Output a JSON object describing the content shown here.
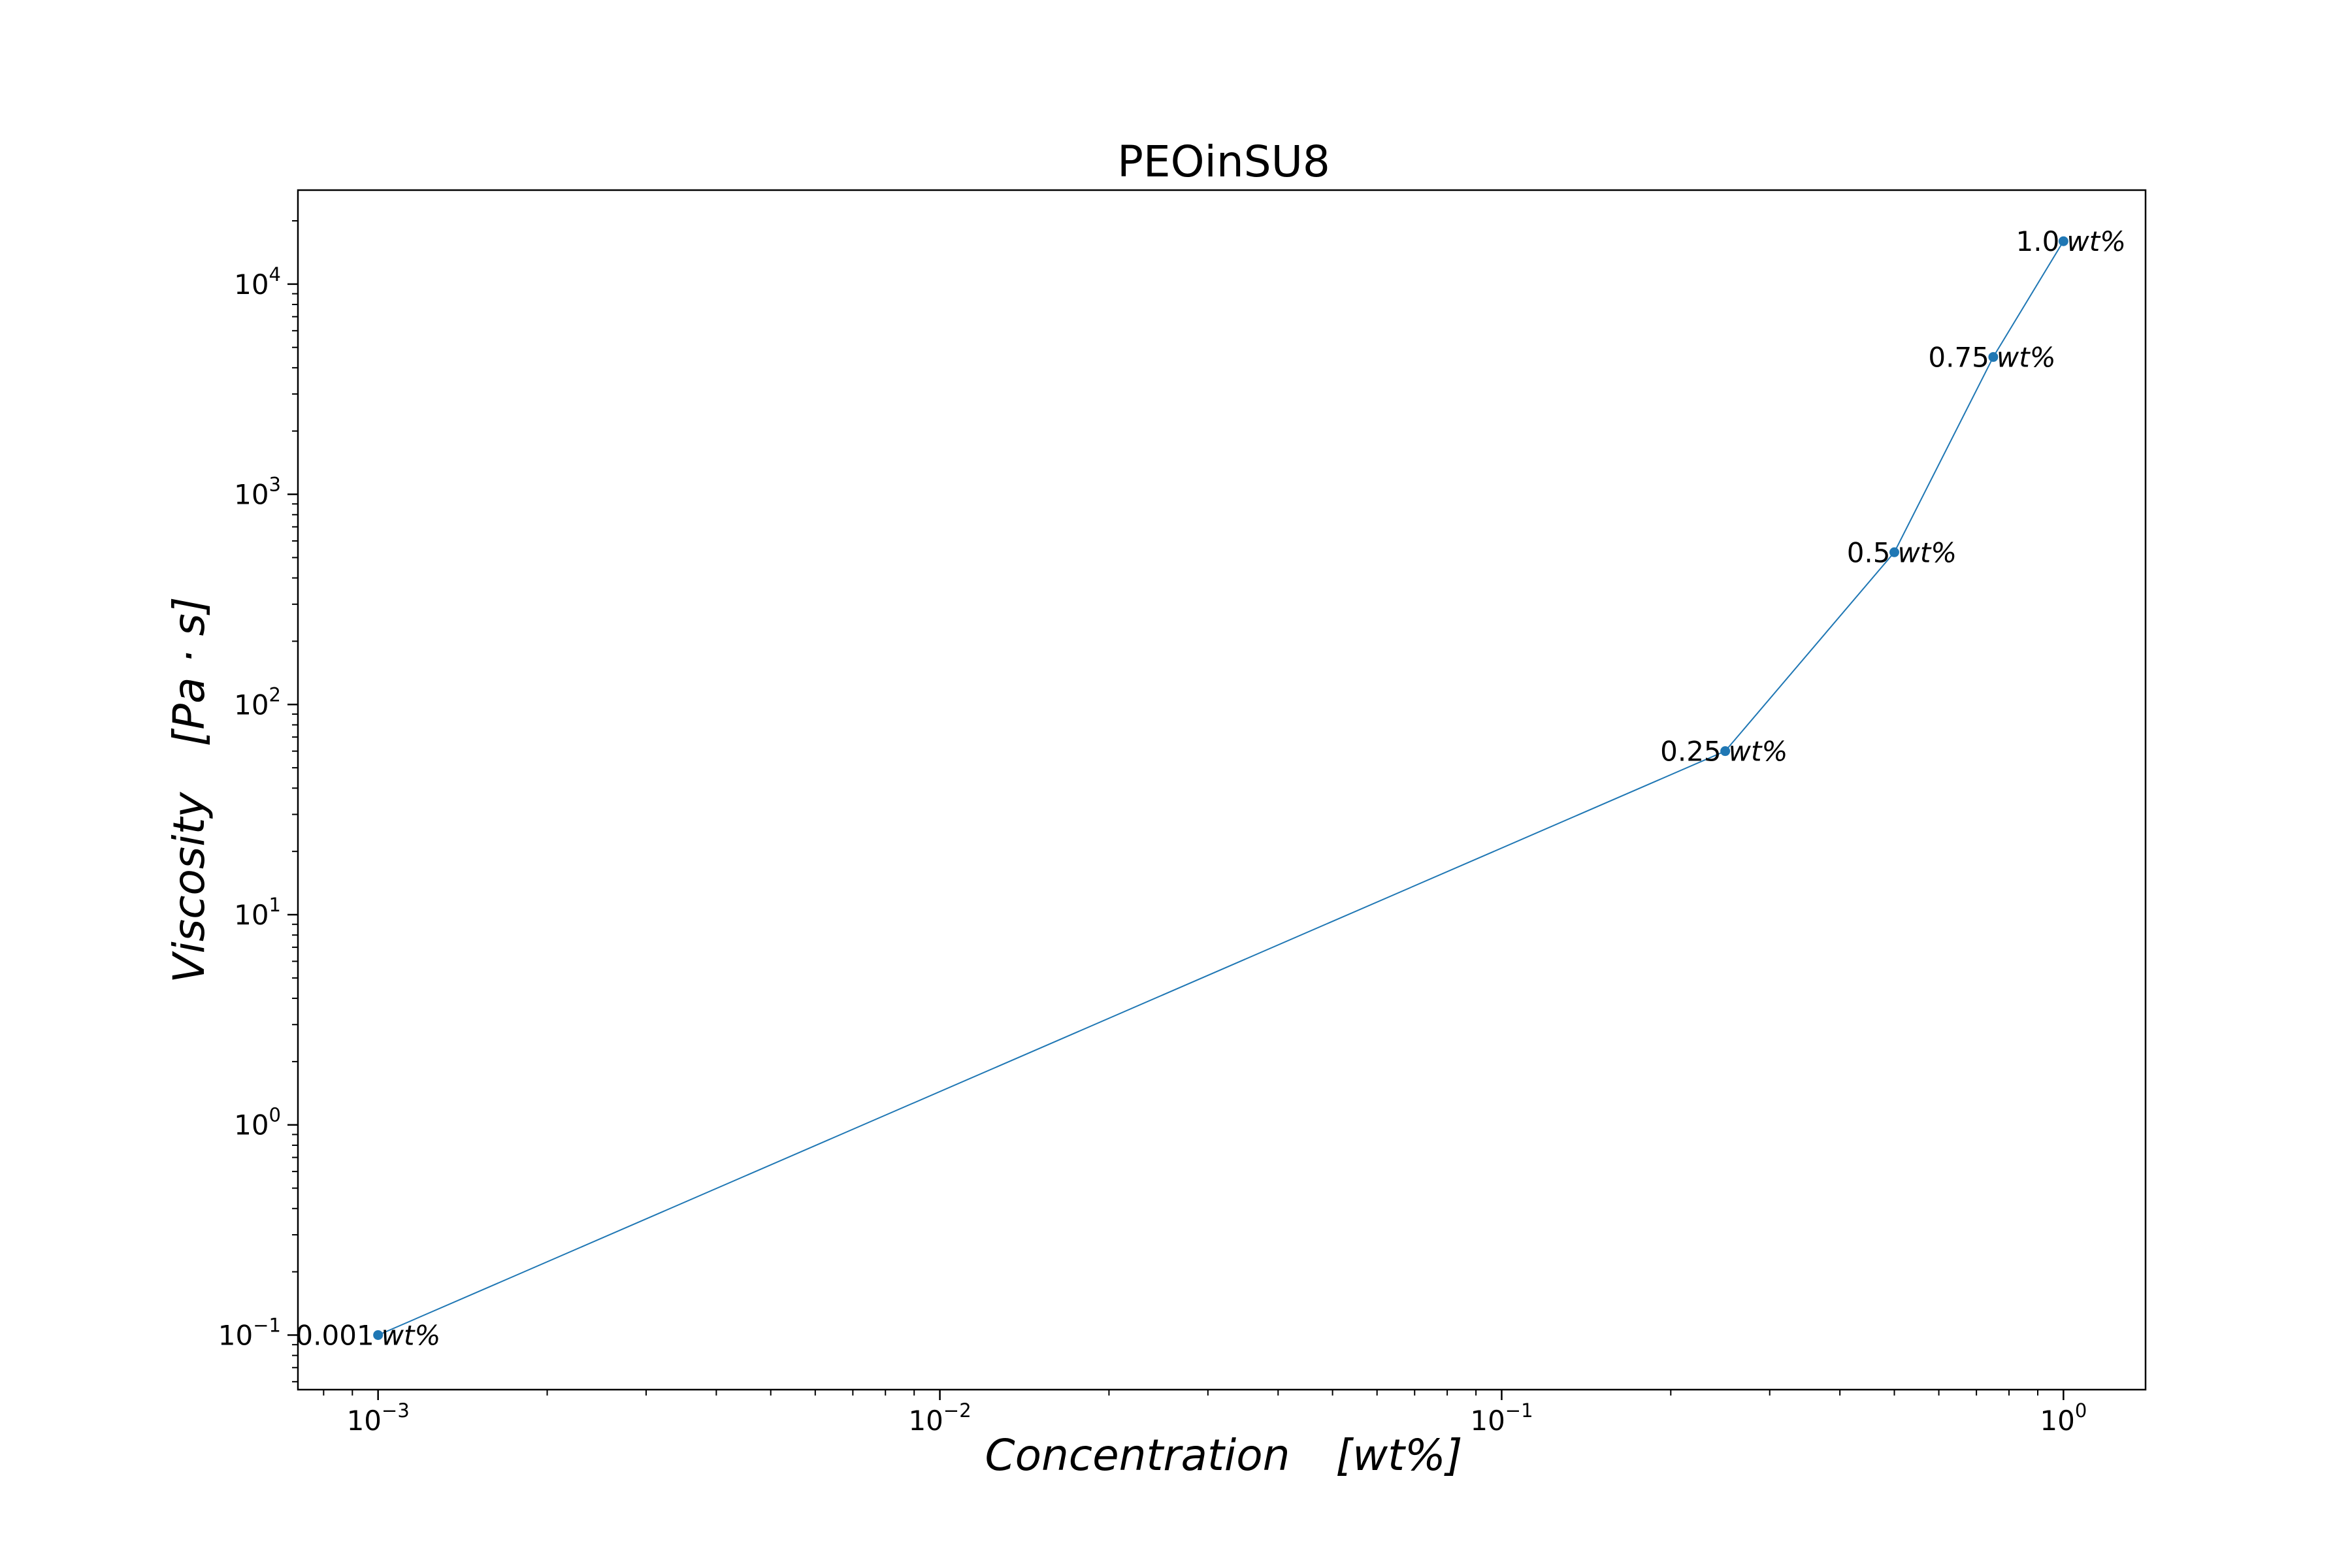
{
  "chart_data": {
    "type": "line",
    "title": "PEOinSU8",
    "xlabel": {
      "name": "Concentration",
      "unit": "[wt%]"
    },
    "ylabel": {
      "name": "Viscosity",
      "unit": "[Pa · s]"
    },
    "x_scale": "log",
    "y_scale": "log",
    "xlim": [
      0.00072,
      1.4
    ],
    "ylim": [
      0.055,
      28000
    ],
    "x_ticks": [
      {
        "value": 0.001,
        "base": "10",
        "exp": "−3"
      },
      {
        "value": 0.01,
        "base": "10",
        "exp": "−2"
      },
      {
        "value": 0.1,
        "base": "10",
        "exp": "−1"
      },
      {
        "value": 1,
        "base": "10",
        "exp": "0"
      }
    ],
    "y_ticks": [
      {
        "value": 0.1,
        "base": "10",
        "exp": "−1"
      },
      {
        "value": 1,
        "base": "10",
        "exp": "0"
      },
      {
        "value": 10,
        "base": "10",
        "exp": "1"
      },
      {
        "value": 100,
        "base": "10",
        "exp": "2"
      },
      {
        "value": 1000,
        "base": "10",
        "exp": "3"
      },
      {
        "value": 10000,
        "base": "10",
        "exp": "4"
      }
    ],
    "grid": false,
    "line_color": "#1f77b4",
    "series": [
      {
        "points": [
          {
            "x": 0.001,
            "y": 0.1,
            "label_value": "0.001",
            "label_unit": "wt%"
          },
          {
            "x": 0.25,
            "y": 60,
            "label_value": "0.25",
            "label_unit": "wt%"
          },
          {
            "x": 0.5,
            "y": 530,
            "label_value": "0.5",
            "label_unit": "wt%"
          },
          {
            "x": 0.75,
            "y": 4500,
            "label_value": "0.75",
            "label_unit": "wt%"
          },
          {
            "x": 1.0,
            "y": 16000,
            "label_value": "1.0",
            "label_unit": "wt%"
          }
        ]
      }
    ]
  }
}
